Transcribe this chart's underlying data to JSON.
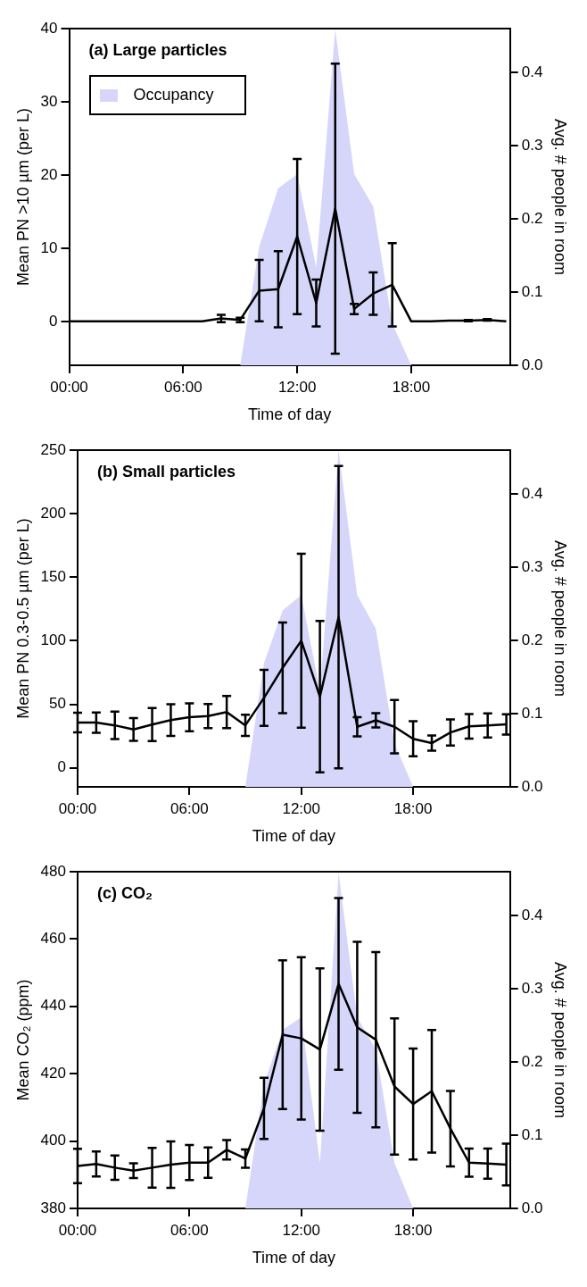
{
  "chart_data": [
    {
      "type": "line",
      "title": "(a) Large particles",
      "xlabel": "Time of day",
      "ylabel": "Mean PN >10 µm (per L)",
      "y2label": "Avg. # people in room",
      "x": [
        0,
        1,
        2,
        3,
        4,
        5,
        6,
        7,
        8,
        9,
        10,
        11,
        12,
        13,
        14,
        15,
        16,
        17,
        18,
        19,
        20,
        21,
        22,
        23
      ],
      "xlim": [
        0,
        23.2
      ],
      "xticks": [
        {
          "value": 0,
          "label": "00:00"
        },
        {
          "value": 6,
          "label": "06:00"
        },
        {
          "value": 12,
          "label": "12:00"
        },
        {
          "value": 18,
          "label": "18:00"
        }
      ],
      "ylim": [
        -6,
        40
      ],
      "yticks": [
        0,
        10,
        20,
        30,
        40
      ],
      "y2lim": [
        0,
        0.46
      ],
      "y2ticks": [
        {
          "value": 0,
          "label": "0.0"
        },
        {
          "value": 0.1,
          "label": "0.1"
        },
        {
          "value": 0.2,
          "label": "0.2"
        },
        {
          "value": 0.3,
          "label": "0.3"
        },
        {
          "value": 0.4,
          "label": "0.4"
        }
      ],
      "grid": false,
      "legend": "top left",
      "marker": "none",
      "line_style": "solid",
      "series": [
        {
          "type": "area",
          "axis": "y2",
          "name": "Occupancy",
          "color": "#d6d6fa",
          "values": [
            null,
            null,
            null,
            null,
            null,
            null,
            null,
            null,
            null,
            0,
            0.162,
            0.242,
            0.261,
            0.134,
            0.459,
            0.261,
            0.217,
            0.057,
            0,
            null,
            null,
            null,
            null,
            null
          ]
        },
        {
          "type": "line",
          "color": "#000000",
          "values": [
            0,
            0,
            0,
            0,
            0,
            0,
            0,
            0,
            0.4,
            0.2,
            4.2,
            4.4,
            11.6,
            2.5,
            15.4,
            1.7,
            3.8,
            5,
            0,
            0,
            0.1,
            0.1,
            0.2,
            0
          ],
          "errors": [
            null,
            null,
            null,
            null,
            null,
            null,
            null,
            null,
            0.5,
            0.3,
            4.2,
            5.2,
            10.6,
            3.2,
            19.8,
            0.7,
            2.9,
            5.7,
            null,
            null,
            null,
            0.1,
            0.1,
            null
          ]
        }
      ]
    },
    {
      "type": "line",
      "title": "(b) Small particles",
      "xlabel": "Time of day",
      "ylabel": "Mean PN 0.3-0.5 µm (per L)",
      "y2label": "Avg. # people in room",
      "x": [
        0,
        1,
        2,
        3,
        4,
        5,
        6,
        7,
        8,
        9,
        10,
        11,
        12,
        13,
        14,
        15,
        16,
        17,
        18,
        19,
        20,
        21,
        22,
        23
      ],
      "xlim": [
        0,
        23.2
      ],
      "xticks": [
        {
          "value": 0,
          "label": "00:00"
        },
        {
          "value": 6,
          "label": "06:00"
        },
        {
          "value": 12,
          "label": "12:00"
        },
        {
          "value": 18,
          "label": "18:00"
        }
      ],
      "ylim": [
        -15,
        250
      ],
      "yticks": [
        0,
        50,
        100,
        150,
        200,
        250
      ],
      "y2lim": [
        0,
        0.46
      ],
      "y2ticks": [
        {
          "value": 0,
          "label": "0.0"
        },
        {
          "value": 0.1,
          "label": "0.1"
        },
        {
          "value": 0.2,
          "label": "0.2"
        },
        {
          "value": 0.3,
          "label": "0.3"
        },
        {
          "value": 0.4,
          "label": "0.4"
        }
      ],
      "grid": false,
      "marker": "none",
      "line_style": "solid",
      "series": [
        {
          "type": "area",
          "axis": "y2",
          "color": "#d6d6fa",
          "values": [
            null,
            null,
            null,
            null,
            null,
            null,
            null,
            null,
            null,
            0,
            0.169,
            0.241,
            0.262,
            0.131,
            0.46,
            0.262,
            0.216,
            0.059,
            0,
            null,
            null,
            null,
            null,
            null
          ]
        },
        {
          "type": "line",
          "color": "#000000",
          "values": [
            35.6,
            35.6,
            33.4,
            30.2,
            34,
            37.5,
            39.8,
            40.7,
            43.9,
            33.4,
            55,
            78.7,
            100,
            56,
            118.6,
            32.3,
            37.4,
            32.3,
            22.8,
            19.4,
            27.8,
            32.6,
            33.4,
            34.2
          ],
          "errors": [
            7.7,
            8,
            10.8,
            9,
            13,
            12.5,
            11,
            9.5,
            12.7,
            8.4,
            22,
            35.7,
            68.4,
            59.6,
            119,
            7.5,
            5.6,
            21,
            13.8,
            6,
            10.3,
            9.7,
            9.5,
            8
          ]
        }
      ]
    },
    {
      "type": "line",
      "title": "(c) CO₂",
      "xlabel": "Time of day",
      "ylabel": "Mean CO₂ (ppm)",
      "y2label": "Avg. # people in room",
      "x": [
        0,
        1,
        2,
        3,
        4,
        5,
        6,
        7,
        8,
        9,
        10,
        11,
        12,
        13,
        14,
        15,
        16,
        17,
        18,
        19,
        20,
        21,
        22,
        23
      ],
      "xlim": [
        0,
        23.2
      ],
      "xticks": [
        {
          "value": 0,
          "label": "00:00"
        },
        {
          "value": 6,
          "label": "06:00"
        },
        {
          "value": 12,
          "label": "12:00"
        },
        {
          "value": 18,
          "label": "18:00"
        }
      ],
      "ylim": [
        380,
        480
      ],
      "yticks": [
        380,
        400,
        420,
        440,
        460,
        480
      ],
      "y2lim": [
        0,
        0.46
      ],
      "y2ticks": [
        {
          "value": 0,
          "label": "0.0"
        },
        {
          "value": 0.1,
          "label": "0.1"
        },
        {
          "value": 0.2,
          "label": "0.2"
        },
        {
          "value": 0.3,
          "label": "0.3"
        },
        {
          "value": 0.4,
          "label": "0.4"
        }
      ],
      "grid": false,
      "marker": "none",
      "line_style": "solid",
      "series": [
        {
          "type": "area",
          "axis": "y2",
          "color": "#d6d6fa",
          "values": [
            null,
            null,
            null,
            null,
            null,
            null,
            null,
            null,
            null,
            0,
            0.17,
            0.244,
            0.261,
            0.062,
            0.459,
            0.261,
            0.217,
            0.062,
            0,
            null,
            null,
            null,
            null,
            null
          ]
        },
        {
          "type": "line",
          "color": "#000000",
          "values": [
            392.6,
            393.2,
            392.1,
            391.2,
            392.1,
            393,
            393.6,
            393.6,
            397.4,
            394.8,
            409.7,
            431.6,
            430.5,
            427.2,
            446.7,
            433.8,
            430.1,
            416.2,
            411,
            414.8,
            403.7,
            393.6,
            393.3,
            393
          ],
          "errors": [
            5.1,
            3.7,
            3.6,
            2.2,
            5.9,
            6.9,
            5.2,
            4.5,
            2.9,
            2.7,
            9.1,
            22.1,
            24.1,
            24.1,
            25.5,
            25.4,
            26,
            20.2,
            16.5,
            18.2,
            11.2,
            4.2,
            4.5,
            6.2
          ]
        }
      ]
    }
  ]
}
